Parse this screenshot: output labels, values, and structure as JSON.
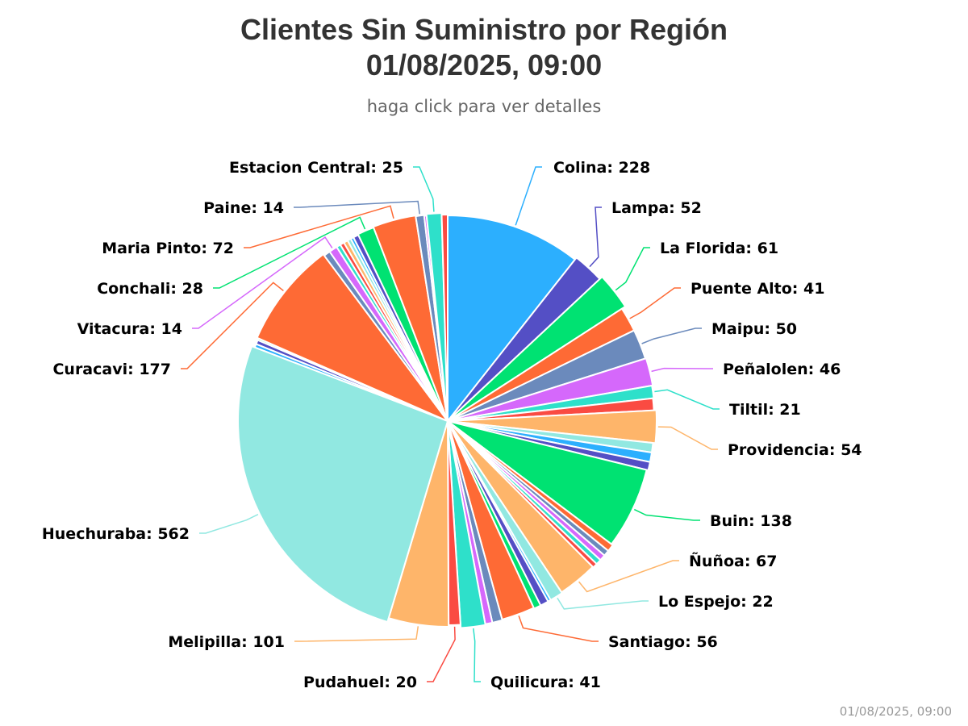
{
  "chart_data": {
    "type": "pie",
    "title": "Clientes Sin Suministro por Región",
    "title_line2": "01/08/2025, 09:00",
    "subtitle": "haga click para ver detalles",
    "credit": "01/08/2025, 09:00",
    "legend": "none",
    "labels_shown": [
      "Colina",
      "Lampa",
      "La Florida",
      "Puente Alto",
      "Maipu",
      "Peñalolen",
      "Tiltil",
      "Providencia",
      "Buin",
      "Ñuñoa",
      "Lo Espejo",
      "Santiago",
      "Quilicura",
      "Pudahuel",
      "Melipilla",
      "Huechuraba",
      "Curacavi",
      "Vitacura",
      "Conchali",
      "Maria Pinto",
      "Paine",
      "Estacion Central"
    ],
    "slices": [
      {
        "name": "Colina",
        "value": 228,
        "color": "#2caffe",
        "label": "Colina: 228"
      },
      {
        "name": "Lampa",
        "value": 52,
        "color": "#544fc5",
        "label": "Lampa: 52"
      },
      {
        "name": "La Florida",
        "value": 61,
        "color": "#00e272",
        "label": "La Florida: 61"
      },
      {
        "name": "Puente Alto",
        "value": 41,
        "color": "#fe6a35",
        "label": "Puente Alto: 41"
      },
      {
        "name": "Maipu",
        "value": 50,
        "color": "#6b8abc",
        "label": "Maipu: 50"
      },
      {
        "name": "Peñalolen",
        "value": 46,
        "color": "#d568fb",
        "label": "Peñalolen: 46"
      },
      {
        "name": "Tiltil",
        "value": 21,
        "color": "#2ee0ca",
        "label": "Tiltil: 21"
      },
      {
        "name": "",
        "value": 20,
        "color": "#fa4b42",
        "label": ""
      },
      {
        "name": "Providencia",
        "value": 54,
        "color": "#feb56a",
        "label": "Providencia: 54"
      },
      {
        "name": "",
        "value": 16,
        "color": "#91e8e1",
        "label": ""
      },
      {
        "name": "",
        "value": 16,
        "color": "#2caffe",
        "label": ""
      },
      {
        "name": "",
        "value": 14,
        "color": "#544fc5",
        "label": ""
      },
      {
        "name": "Buin",
        "value": 138,
        "color": "#00e272",
        "label": "Buin: 138"
      },
      {
        "name": "",
        "value": 12,
        "color": "#fe6a35",
        "label": ""
      },
      {
        "name": "",
        "value": 10,
        "color": "#6b8abc",
        "label": ""
      },
      {
        "name": "",
        "value": 10,
        "color": "#d568fb",
        "label": ""
      },
      {
        "name": "",
        "value": 9,
        "color": "#2ee0ca",
        "label": ""
      },
      {
        "name": "",
        "value": 8,
        "color": "#fa4b42",
        "label": ""
      },
      {
        "name": "Ñuñoa",
        "value": 67,
        "color": "#feb56a",
        "label": "Ñuñoa: 67"
      },
      {
        "name": "Lo Espejo",
        "value": 22,
        "color": "#91e8e1",
        "label": "Lo Espejo: 22"
      },
      {
        "name": "",
        "value": 5,
        "color": "#2caffe",
        "label": ""
      },
      {
        "name": "",
        "value": 14,
        "color": "#544fc5",
        "label": ""
      },
      {
        "name": "",
        "value": 12,
        "color": "#00e272",
        "label": ""
      },
      {
        "name": "Santiago",
        "value": 56,
        "color": "#fe6a35",
        "label": "Santiago: 56"
      },
      {
        "name": "",
        "value": 17,
        "color": "#6b8abc",
        "label": ""
      },
      {
        "name": "",
        "value": 12,
        "color": "#d568fb",
        "label": ""
      },
      {
        "name": "Quilicura",
        "value": 41,
        "color": "#2ee0ca",
        "label": "Quilicura: 41"
      },
      {
        "name": "Pudahuel",
        "value": 20,
        "color": "#fa4b42",
        "label": "Pudahuel: 20"
      },
      {
        "name": "Melipilla",
        "value": 101,
        "color": "#feb56a",
        "label": "Melipilla: 101"
      },
      {
        "name": "Huechuraba",
        "value": 562,
        "color": "#91e8e1",
        "label": "Huechuraba: 562"
      },
      {
        "name": "",
        "value": 6,
        "color": "#2caffe",
        "label": ""
      },
      {
        "name": "",
        "value": 7,
        "color": "#544fc5",
        "label": ""
      },
      {
        "name": "",
        "value": 3,
        "color": "#00e272",
        "label": ""
      },
      {
        "name": "Curacavi",
        "value": 177,
        "color": "#fe6a35",
        "label": "Curacavi: 177"
      },
      {
        "name": "",
        "value": 11,
        "color": "#6b8abc",
        "label": ""
      },
      {
        "name": "Vitacura",
        "value": 14,
        "color": "#d568fb",
        "label": "Vitacura: 14"
      },
      {
        "name": "",
        "value": 7,
        "color": "#2ee0ca",
        "label": ""
      },
      {
        "name": "",
        "value": 7,
        "color": "#fa4b42",
        "label": ""
      },
      {
        "name": "",
        "value": 7,
        "color": "#feb56a",
        "label": ""
      },
      {
        "name": "",
        "value": 6,
        "color": "#91e8e1",
        "label": ""
      },
      {
        "name": "",
        "value": 5,
        "color": "#2caffe",
        "label": ""
      },
      {
        "name": "",
        "value": 9,
        "color": "#544fc5",
        "label": ""
      },
      {
        "name": "Conchali",
        "value": 28,
        "color": "#00e272",
        "label": "Conchali: 28"
      },
      {
        "name": "Maria Pinto",
        "value": 72,
        "color": "#fe6a35",
        "label": "Maria Pinto: 72"
      },
      {
        "name": "Paine",
        "value": 14,
        "color": "#6b8abc",
        "label": "Paine: 14"
      },
      {
        "name": "",
        "value": 4,
        "color": "#d568fb",
        "label": ""
      },
      {
        "name": "Estacion Central",
        "value": 25,
        "color": "#2ee0ca",
        "label": "Estacion Central: 25"
      },
      {
        "name": "",
        "value": 10,
        "color": "#fa4b42",
        "label": ""
      }
    ]
  }
}
